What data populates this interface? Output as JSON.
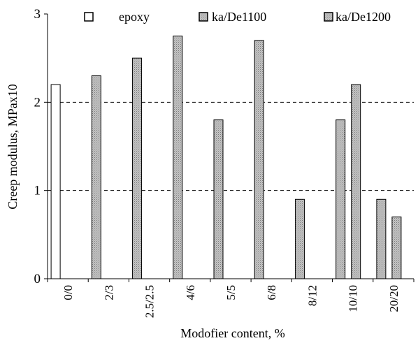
{
  "chart_data": {
    "type": "bar",
    "title": "",
    "xlabel": "Modofier content, %",
    "ylabel": "Creep modulus, MPax10",
    "ylim": [
      0,
      3
    ],
    "yticks": [
      0,
      1,
      2,
      3
    ],
    "grid": "dashed horizontal lines at 1 and 2",
    "legend_position": "top",
    "categories": [
      "0/0",
      "2/3",
      "2.5/2.5",
      "4/6",
      "5/5",
      "6/8",
      "8/12",
      "10/10",
      "20/20"
    ],
    "series": [
      {
        "name": "epoxy",
        "color": "#ffffff",
        "pattern": "none",
        "values": [
          2.2,
          null,
          null,
          null,
          null,
          null,
          null,
          null,
          null
        ]
      },
      {
        "name": "ka/De1100",
        "color": "#bbbbbb",
        "pattern": "dotted",
        "values": [
          null,
          2.3,
          2.5,
          2.75,
          1.8,
          2.7,
          0.9,
          1.8,
          0.9
        ]
      },
      {
        "name": "ka/De1200",
        "color": "#bbbbbb",
        "pattern": "dotted",
        "values": [
          null,
          null,
          null,
          null,
          null,
          null,
          null,
          2.2,
          0.7
        ]
      }
    ]
  }
}
